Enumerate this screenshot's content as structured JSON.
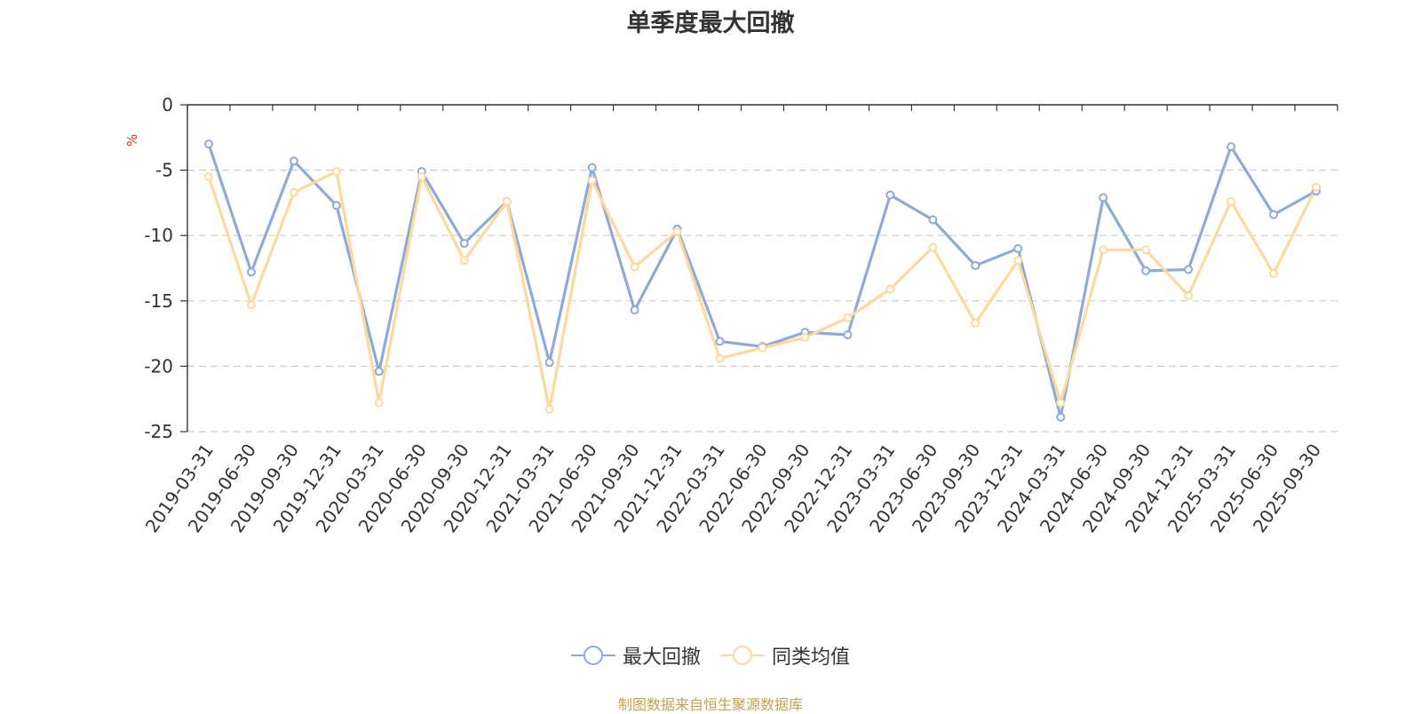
{
  "chart_data": {
    "type": "line",
    "title": "单季度最大回撤",
    "ylabel": "%",
    "xlabel": "",
    "ylim": [
      -25,
      0
    ],
    "yticks": [
      0,
      -5,
      -10,
      -15,
      -20,
      -25
    ],
    "grid": true,
    "legend_position": "bottom-center",
    "categories": [
      "2019-03-31",
      "2019-06-30",
      "2019-09-30",
      "2019-12-31",
      "2020-03-31",
      "2020-06-30",
      "2020-09-30",
      "2020-12-31",
      "2021-03-31",
      "2021-06-30",
      "2021-09-30",
      "2021-12-31",
      "2022-03-31",
      "2022-06-30",
      "2022-09-30",
      "2022-12-31",
      "2023-03-31",
      "2023-06-30",
      "2023-09-30",
      "2023-12-31",
      "2024-03-31",
      "2024-06-30",
      "2024-09-30",
      "2024-12-31",
      "2025-03-31",
      "2025-06-30",
      "2025-09-30"
    ],
    "series": [
      {
        "name": "最大回撤",
        "color": "#8eaadb",
        "values": [
          -3.0,
          -12.8,
          -4.3,
          -7.7,
          -20.4,
          -5.1,
          -10.6,
          -7.4,
          -19.7,
          -4.8,
          -15.7,
          -9.5,
          -18.1,
          -18.5,
          -17.4,
          -17.6,
          -6.9,
          -8.8,
          -12.3,
          -11.0,
          -23.9,
          -7.1,
          -12.7,
          -12.6,
          -3.2,
          -8.4,
          -6.6
        ]
      },
      {
        "name": "同类均值",
        "color": "#fdd99b",
        "values": [
          -5.5,
          -15.3,
          -6.7,
          -5.1,
          -22.8,
          -5.5,
          -11.9,
          -7.4,
          -23.3,
          -5.8,
          -12.4,
          -9.7,
          -19.4,
          -18.6,
          -17.8,
          -16.3,
          -14.1,
          -10.9,
          -16.7,
          -11.9,
          -22.8,
          -11.1,
          -11.1,
          -14.6,
          -7.4,
          -12.9,
          -6.3
        ]
      }
    ]
  },
  "source_note": "制图数据来自恒生聚源数据库"
}
